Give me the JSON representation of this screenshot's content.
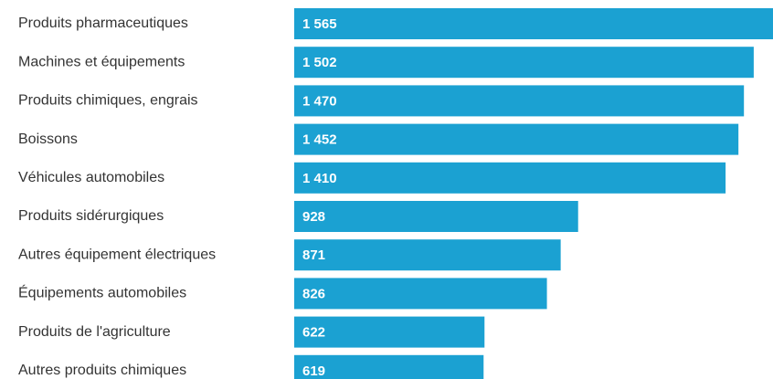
{
  "chart_data": {
    "type": "bar",
    "orientation": "horizontal",
    "categories": [
      "Produits pharmaceutiques",
      "Machines et équipements",
      "Produits chimiques, engrais",
      "Boissons",
      "Véhicules automobiles",
      "Produits sidérurgiques",
      "Autres équipement électriques",
      "Équipements automobiles",
      "Produits de l'agriculture",
      "Autres produits chimiques"
    ],
    "values": [
      1565,
      1502,
      1470,
      1452,
      1410,
      928,
      871,
      826,
      622,
      619
    ],
    "value_labels": [
      "1 565",
      "1 502",
      "1 470",
      "1 452",
      "1 410",
      "928",
      "871",
      "826",
      "622",
      "619"
    ],
    "color": "#1ba1d2"
  }
}
